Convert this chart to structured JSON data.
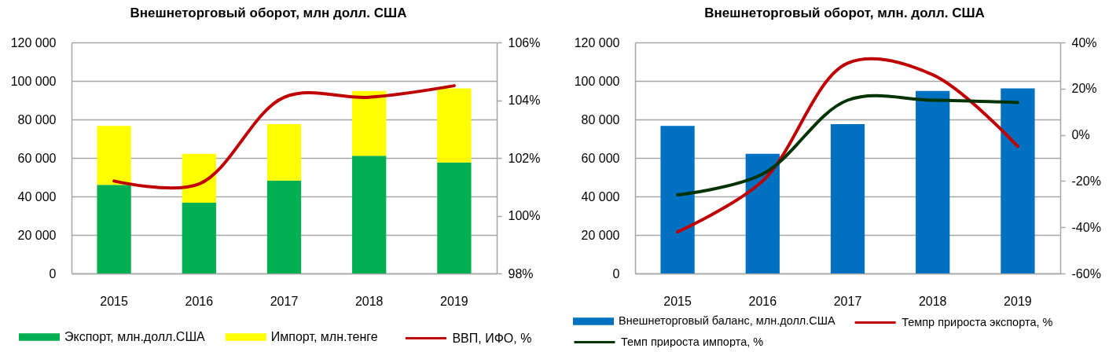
{
  "chart_data": [
    {
      "type": "bar",
      "title": "Внешнеторговый оборот, млн долл. США",
      "categories": [
        "2015",
        "2016",
        "2017",
        "2018",
        "2019"
      ],
      "stacked": true,
      "series": [
        {
          "name": "Экспорт, млн.долл.США",
          "color": "#00b050",
          "values": [
            46000,
            36700,
            48300,
            61100,
            57700
          ]
        },
        {
          "name": "Импорт, млн.тенге",
          "color": "#ffff00",
          "values": [
            30600,
            25400,
            29300,
            33700,
            38400
          ]
        },
        {
          "name": "ВВП, ИФО, %",
          "type": "line",
          "axis": "y2",
          "color": "#c00000",
          "values": [
            101.2,
            101.1,
            104.1,
            104.1,
            104.5
          ]
        }
      ],
      "ylim": [
        0,
        120000
      ],
      "yticks": [
        0,
        {
          "value": 20000,
          "label": "20 000"
        },
        {
          "value": 40000,
          "label": "40 000"
        },
        {
          "value": 60000,
          "label": "60 000"
        },
        {
          "value": 80000,
          "label": "80 000"
        },
        {
          "value": 100000,
          "label": "100 000"
        },
        {
          "value": 120000,
          "label": "120 000"
        }
      ],
      "y2lim": [
        98,
        106
      ],
      "y2ticks": [
        {
          "value": 98,
          "label": "98%"
        },
        {
          "value": 100,
          "label": "100%"
        },
        {
          "value": 102,
          "label": "102%"
        },
        {
          "value": 104,
          "label": "104%"
        },
        {
          "value": 106,
          "label": "106%"
        }
      ],
      "grid": "y",
      "legend": "bottom"
    },
    {
      "type": "bar",
      "title": "Внешнеторговый оборот, млн. долл. США",
      "categories": [
        "2015",
        "2016",
        "2017",
        "2018",
        "2019"
      ],
      "series": [
        {
          "name": "Внешнеторговый баланс, млн.долл.США",
          "color": "#0070c0",
          "values": [
            76600,
            62100,
            77600,
            94800,
            96100
          ]
        },
        {
          "name": "Темпр прироста экспорта, %",
          "type": "line",
          "axis": "y2",
          "color": "#c00000",
          "values": [
            -42,
            -20,
            31,
            26,
            -5
          ]
        },
        {
          "name": "Темп прироста импорта, %",
          "type": "line",
          "axis": "y2",
          "color": "#003300",
          "values": [
            -26,
            -17,
            15,
            15,
            14
          ]
        }
      ],
      "ylim": [
        0,
        120000
      ],
      "yticks": [
        0,
        {
          "value": 20000,
          "label": "20 000"
        },
        {
          "value": 40000,
          "label": "40 000"
        },
        {
          "value": 60000,
          "label": "60 000"
        },
        {
          "value": 80000,
          "label": "80 000"
        },
        {
          "value": 100000,
          "label": "100 000"
        },
        {
          "value": 120000,
          "label": "120 000"
        }
      ],
      "y2lim": [
        -60,
        40
      ],
      "y2ticks": [
        {
          "value": -60,
          "label": "-60%"
        },
        {
          "value": -40,
          "label": "-40%"
        },
        {
          "value": -20,
          "label": "-20%"
        },
        {
          "value": 0,
          "label": "0%"
        },
        {
          "value": 20,
          "label": "20%"
        },
        {
          "value": 40,
          "label": "40%"
        }
      ],
      "grid": "y",
      "legend": "bottom"
    }
  ]
}
